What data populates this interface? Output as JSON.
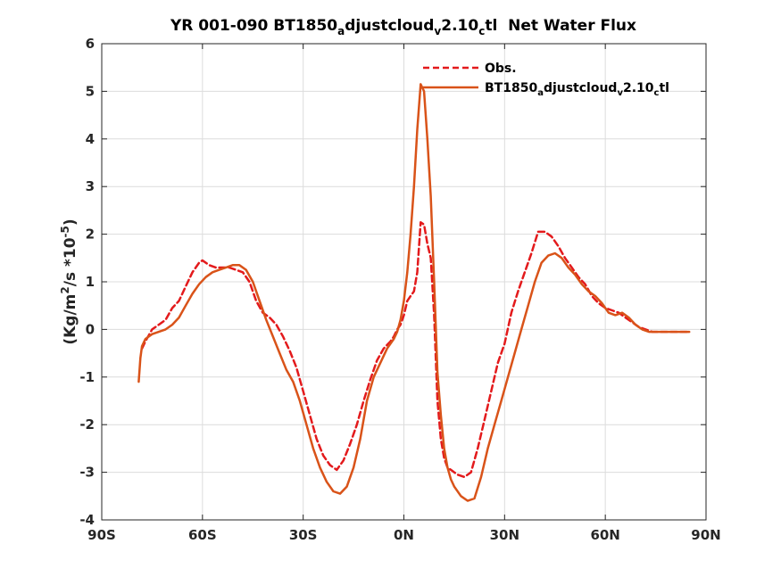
{
  "chart_data": {
    "type": "line",
    "title": "YR 001-090 BT1850_adjustcloud_v2.10_ctl  Net Water Flux",
    "title_parts": {
      "prefix": "YR 001-090 BT1850",
      "sub1": "a",
      "mid1": "djustcloud",
      "sub2": "v",
      "mid2": "2.10",
      "sub3": "c",
      "tail": "tl  Net Water Flux"
    },
    "ylabel_parts": {
      "pre": "(Kg/m",
      "sup1": "2",
      "mid": "/s *10",
      "sup2": "-5",
      "post": ")"
    },
    "xlabel": "",
    "xlim": [
      -90,
      90
    ],
    "ylim": [
      -4,
      6
    ],
    "xticks": [
      -90,
      -60,
      -30,
      0,
      30,
      60,
      90
    ],
    "xtick_labels": [
      "90S",
      "60S",
      "30S",
      "0N",
      "30N",
      "60N",
      "90N"
    ],
    "yticks": [
      -4,
      -3,
      -2,
      -1,
      0,
      1,
      2,
      3,
      4,
      5,
      6
    ],
    "ytick_labels": [
      "-4",
      "-3",
      "-2",
      "-1",
      "0",
      "1",
      "2",
      "3",
      "4",
      "5",
      "6"
    ],
    "grid": true,
    "legend_position": "top-right",
    "series": [
      {
        "name": "Obs.",
        "legend_parts": {
          "text": "Obs."
        },
        "color": "#e31a1c",
        "style": "dashed",
        "x": [
          -78,
          -77,
          -75,
          -73,
          -71,
          -69,
          -67,
          -65,
          -63,
          -61,
          -60,
          -58,
          -56,
          -54,
          -52,
          -50,
          -48,
          -46,
          -44,
          -42,
          -40,
          -38,
          -36,
          -34,
          -32,
          -30,
          -28,
          -26,
          -24,
          -22,
          -20,
          -18,
          -16,
          -14,
          -12,
          -10,
          -8,
          -6,
          -4,
          -3,
          -2,
          -1,
          0,
          1,
          2,
          3,
          4,
          5,
          6,
          7,
          8,
          9,
          10,
          11,
          12,
          13,
          14,
          15,
          16,
          18,
          20,
          22,
          24,
          26,
          28,
          30,
          32,
          34,
          36,
          38,
          40,
          42,
          44,
          46,
          48,
          50,
          52,
          54,
          56,
          58,
          60,
          62,
          64,
          66,
          68,
          70,
          72,
          74,
          76,
          78,
          80,
          82,
          85
        ],
        "values": [
          -0.4,
          -0.25,
          0.0,
          0.1,
          0.2,
          0.45,
          0.6,
          0.9,
          1.2,
          1.4,
          1.45,
          1.35,
          1.3,
          1.3,
          1.3,
          1.25,
          1.2,
          1.0,
          0.6,
          0.35,
          0.25,
          0.1,
          -0.15,
          -0.45,
          -0.8,
          -1.3,
          -1.8,
          -2.3,
          -2.65,
          -2.85,
          -2.95,
          -2.75,
          -2.4,
          -2.0,
          -1.5,
          -1.05,
          -0.65,
          -0.4,
          -0.25,
          -0.15,
          0.0,
          0.1,
          0.3,
          0.6,
          0.7,
          0.8,
          1.2,
          2.25,
          2.2,
          1.8,
          1.5,
          0.3,
          -1.5,
          -2.3,
          -2.7,
          -2.9,
          -2.95,
          -3.0,
          -3.05,
          -3.1,
          -3.0,
          -2.5,
          -1.9,
          -1.3,
          -0.7,
          -0.3,
          0.35,
          0.8,
          1.2,
          1.6,
          2.05,
          2.05,
          1.95,
          1.75,
          1.5,
          1.3,
          1.1,
          0.95,
          0.7,
          0.55,
          0.45,
          0.4,
          0.35,
          0.25,
          0.15,
          0.05,
          0.0,
          -0.05,
          -0.05,
          -0.05,
          -0.05,
          -0.05,
          -0.05
        ]
      },
      {
        "name": "BT1850_adjustcloud_v2.10_ctl",
        "legend_parts": {
          "prefix": "BT1850",
          "sub1": "a",
          "mid1": "djustcloud",
          "sub2": "v",
          "mid2": "2.10",
          "sub3": "c",
          "tail": "tl"
        },
        "color": "#d95319",
        "style": "solid",
        "x": [
          -79,
          -78.5,
          -78,
          -77,
          -75,
          -73,
          -71,
          -69,
          -67,
          -65,
          -63,
          -61,
          -59,
          -57,
          -55,
          -53,
          -51,
          -49,
          -47,
          -45,
          -43,
          -41,
          -39,
          -37,
          -35,
          -33,
          -31,
          -29,
          -27,
          -25,
          -23,
          -21,
          -19,
          -17,
          -15,
          -13,
          -11,
          -9,
          -7,
          -5,
          -3,
          -2,
          -1,
          0,
          1,
          2,
          3,
          4,
          5,
          6,
          7,
          8,
          9,
          10,
          11,
          12,
          13,
          14,
          15,
          17,
          19,
          21,
          23,
          25,
          27,
          29,
          31,
          33,
          35,
          37,
          39,
          41,
          43,
          45,
          47,
          49,
          51,
          53,
          55,
          57,
          59,
          61,
          63,
          65,
          67,
          69,
          71,
          73,
          75,
          77,
          79,
          81,
          83,
          85
        ],
        "values": [
          -1.1,
          -0.6,
          -0.35,
          -0.2,
          -0.1,
          -0.05,
          0.0,
          0.1,
          0.25,
          0.5,
          0.75,
          0.95,
          1.1,
          1.2,
          1.25,
          1.3,
          1.35,
          1.35,
          1.25,
          1.0,
          0.6,
          0.2,
          -0.15,
          -0.5,
          -0.85,
          -1.1,
          -1.5,
          -2.0,
          -2.5,
          -2.9,
          -3.2,
          -3.4,
          -3.45,
          -3.3,
          -2.9,
          -2.3,
          -1.5,
          -1.0,
          -0.7,
          -0.4,
          -0.2,
          -0.05,
          0.2,
          0.6,
          1.2,
          2.0,
          3.0,
          4.2,
          5.15,
          5.0,
          4.0,
          2.8,
          1.0,
          -0.9,
          -1.8,
          -2.5,
          -2.9,
          -3.15,
          -3.3,
          -3.5,
          -3.6,
          -3.55,
          -3.1,
          -2.5,
          -2.0,
          -1.5,
          -1.0,
          -0.5,
          0.0,
          0.5,
          1.0,
          1.4,
          1.55,
          1.6,
          1.5,
          1.3,
          1.15,
          0.95,
          0.8,
          0.7,
          0.55,
          0.35,
          0.3,
          0.35,
          0.25,
          0.1,
          0.0,
          -0.05,
          -0.05,
          -0.05,
          -0.05,
          -0.05,
          -0.05,
          -0.05
        ]
      }
    ]
  }
}
